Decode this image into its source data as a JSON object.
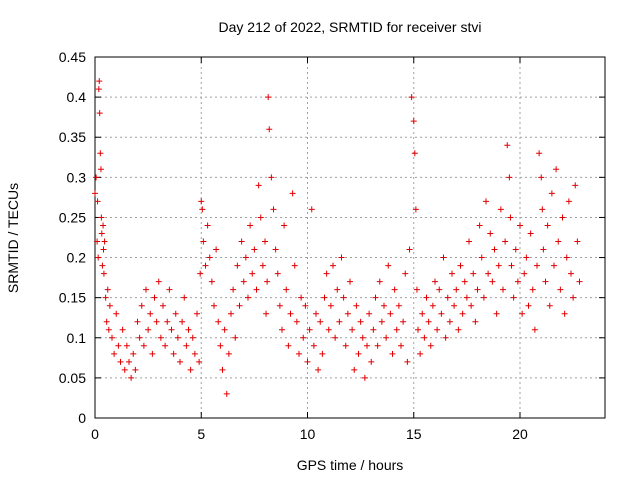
{
  "chart_data": {
    "type": "scatter",
    "title": "Day 212 of 2022, SRMTID for receiver stvi",
    "xlabel": "GPS time / hours",
    "ylabel": "SRMTID / TECUs",
    "xlim": [
      0,
      24
    ],
    "ylim": [
      0,
      0.45
    ],
    "x_ticks": [
      0,
      5,
      10,
      15,
      20
    ],
    "y_ticks": [
      0,
      0.05,
      0.1,
      0.15,
      0.2,
      0.25,
      0.3,
      0.35,
      0.4,
      0.45
    ],
    "grid": true,
    "legend": "none",
    "marker": "plus",
    "color": "#e00000",
    "series": [
      {
        "x": [
          0.0,
          0.05,
          0.1,
          0.12,
          0.15,
          0.18,
          0.2,
          0.22,
          0.25,
          0.28,
          0.3,
          0.32,
          0.35,
          0.38,
          0.4,
          0.42,
          0.45,
          0.5,
          0.55,
          0.6,
          0.65,
          0.7,
          0.8,
          0.9,
          1.0,
          1.1,
          1.2,
          1.3,
          1.4,
          1.5,
          1.6,
          1.7,
          1.8,
          1.9,
          2.0,
          2.1,
          2.2,
          2.3,
          2.4,
          2.5,
          2.6,
          2.7,
          2.8,
          2.9,
          3.0,
          3.1,
          3.2,
          3.3,
          3.4,
          3.5,
          3.6,
          3.7,
          3.8,
          3.9,
          4.0,
          4.1,
          4.2,
          4.3,
          4.4,
          4.5,
          4.6,
          4.7,
          4.8,
          4.9,
          4.95,
          5.0,
          5.05,
          5.1,
          5.2,
          5.3,
          5.4,
          5.5,
          5.6,
          5.7,
          5.8,
          5.9,
          6.0,
          6.1,
          6.2,
          6.3,
          6.4,
          6.5,
          6.6,
          6.7,
          6.8,
          6.9,
          7.0,
          7.1,
          7.2,
          7.3,
          7.4,
          7.5,
          7.6,
          7.7,
          7.8,
          7.9,
          8.0,
          8.05,
          8.1,
          8.15,
          8.2,
          8.3,
          8.4,
          8.5,
          8.6,
          8.7,
          8.8,
          8.9,
          9.0,
          9.1,
          9.2,
          9.3,
          9.4,
          9.5,
          9.6,
          9.7,
          9.8,
          9.9,
          10.0,
          10.1,
          10.2,
          10.3,
          10.4,
          10.5,
          10.6,
          10.7,
          10.8,
          10.9,
          11.0,
          11.1,
          11.2,
          11.3,
          11.4,
          11.5,
          11.6,
          11.7,
          11.8,
          11.9,
          12.0,
          12.1,
          12.2,
          12.3,
          12.4,
          12.5,
          12.6,
          12.7,
          12.8,
          12.9,
          13.0,
          13.1,
          13.2,
          13.3,
          13.4,
          13.5,
          13.6,
          13.7,
          13.8,
          13.9,
          14.0,
          14.1,
          14.2,
          14.3,
          14.4,
          14.5,
          14.6,
          14.7,
          14.8,
          14.9,
          15.0,
          15.05,
          15.1,
          15.15,
          15.2,
          15.3,
          15.4,
          15.5,
          15.6,
          15.7,
          15.8,
          15.9,
          16.0,
          16.1,
          16.2,
          16.3,
          16.4,
          16.5,
          16.6,
          16.7,
          16.8,
          16.9,
          17.0,
          17.1,
          17.2,
          17.3,
          17.4,
          17.5,
          17.6,
          17.7,
          17.8,
          17.9,
          18.0,
          18.1,
          18.2,
          18.3,
          18.4,
          18.5,
          18.6,
          18.7,
          18.8,
          18.9,
          19.0,
          19.1,
          19.2,
          19.3,
          19.4,
          19.5,
          19.55,
          19.6,
          19.7,
          19.8,
          19.9,
          20.0,
          20.1,
          20.2,
          20.3,
          20.4,
          20.5,
          20.6,
          20.7,
          20.8,
          20.9,
          21.0,
          21.05,
          21.1,
          21.2,
          21.3,
          21.4,
          21.5,
          21.6,
          21.7,
          21.8,
          21.9,
          22.0,
          22.1,
          22.2,
          22.3,
          22.4,
          22.5,
          22.6,
          22.7,
          22.8
        ],
        "y": [
          0.28,
          0.3,
          0.22,
          0.27,
          0.2,
          0.41,
          0.42,
          0.38,
          0.33,
          0.31,
          0.25,
          0.23,
          0.19,
          0.24,
          0.21,
          0.18,
          0.22,
          0.15,
          0.12,
          0.16,
          0.11,
          0.14,
          0.1,
          0.08,
          0.13,
          0.09,
          0.07,
          0.11,
          0.06,
          0.09,
          0.07,
          0.05,
          0.08,
          0.06,
          0.12,
          0.1,
          0.14,
          0.09,
          0.16,
          0.11,
          0.13,
          0.08,
          0.15,
          0.12,
          0.17,
          0.1,
          0.14,
          0.09,
          0.12,
          0.16,
          0.11,
          0.08,
          0.13,
          0.1,
          0.07,
          0.12,
          0.15,
          0.09,
          0.11,
          0.06,
          0.1,
          0.08,
          0.13,
          0.07,
          0.18,
          0.27,
          0.26,
          0.22,
          0.19,
          0.24,
          0.2,
          0.17,
          0.14,
          0.21,
          0.12,
          0.09,
          0.06,
          0.11,
          0.03,
          0.08,
          0.13,
          0.16,
          0.1,
          0.19,
          0.14,
          0.22,
          0.17,
          0.2,
          0.15,
          0.24,
          0.18,
          0.21,
          0.16,
          0.29,
          0.25,
          0.19,
          0.22,
          0.13,
          0.17,
          0.4,
          0.36,
          0.3,
          0.26,
          0.21,
          0.18,
          0.14,
          0.11,
          0.24,
          0.16,
          0.09,
          0.13,
          0.28,
          0.19,
          0.12,
          0.08,
          0.15,
          0.1,
          0.14,
          0.07,
          0.11,
          0.26,
          0.09,
          0.13,
          0.06,
          0.12,
          0.08,
          0.15,
          0.18,
          0.11,
          0.14,
          0.19,
          0.1,
          0.16,
          0.12,
          0.2,
          0.15,
          0.09,
          0.13,
          0.17,
          0.11,
          0.06,
          0.14,
          0.08,
          0.12,
          0.1,
          0.05,
          0.09,
          0.13,
          0.07,
          0.11,
          0.15,
          0.09,
          0.17,
          0.12,
          0.14,
          0.1,
          0.19,
          0.13,
          0.08,
          0.16,
          0.11,
          0.14,
          0.09,
          0.12,
          0.18,
          0.07,
          0.21,
          0.4,
          0.37,
          0.33,
          0.26,
          0.16,
          0.11,
          0.08,
          0.13,
          0.1,
          0.15,
          0.12,
          0.09,
          0.14,
          0.17,
          0.11,
          0.16,
          0.13,
          0.2,
          0.1,
          0.15,
          0.12,
          0.18,
          0.14,
          0.16,
          0.11,
          0.19,
          0.13,
          0.17,
          0.15,
          0.22,
          0.14,
          0.18,
          0.12,
          0.16,
          0.24,
          0.2,
          0.15,
          0.27,
          0.18,
          0.23,
          0.17,
          0.21,
          0.13,
          0.19,
          0.26,
          0.16,
          0.22,
          0.34,
          0.3,
          0.25,
          0.19,
          0.15,
          0.21,
          0.17,
          0.24,
          0.13,
          0.18,
          0.2,
          0.14,
          0.23,
          0.16,
          0.11,
          0.19,
          0.33,
          0.3,
          0.26,
          0.21,
          0.17,
          0.24,
          0.14,
          0.28,
          0.19,
          0.31,
          0.22,
          0.16,
          0.25,
          0.13,
          0.2,
          0.27,
          0.18,
          0.15,
          0.29,
          0.22,
          0.17
        ]
      }
    ]
  }
}
